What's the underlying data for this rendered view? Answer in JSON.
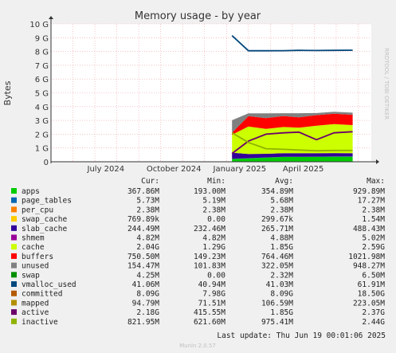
{
  "chart_data": {
    "type": "area",
    "title": "Memory usage - by year",
    "ylabel": "Bytes",
    "watermark": "RRDTOOL / TOBI OETIKER",
    "footer": "Munin 2.0.57",
    "last_update": "Last update: Thu Jun 19 00:01:06 2025",
    "y_ticks": [
      "0",
      "1 G",
      "2 G",
      "3 G",
      "4 G",
      "5 G",
      "6 G",
      "7 G",
      "8 G",
      "9 G",
      "10 G"
    ],
    "ylim": [
      0,
      10
    ],
    "y_unit": "G",
    "x_ticks": [
      {
        "label": "July 2024",
        "month": 6.5
      },
      {
        "label": "October 2024",
        "month": 9.6
      },
      {
        "label": "January 2025",
        "month": 12.6
      },
      {
        "label": "April 2025",
        "month": 15.5
      }
    ],
    "x_range_months": [
      4.0,
      18.6
    ],
    "data_start_month": 12.25,
    "grid": true,
    "legend_headers": [
      "Cur:",
      "Min:",
      "Avg:",
      "Max:"
    ],
    "legend": [
      {
        "name": "apps",
        "color": "#00cc00",
        "cur": "367.86M",
        "min": "193.00M",
        "avg": "354.89M",
        "max": "929.89M"
      },
      {
        "name": "page_tables",
        "color": "#0066b3",
        "cur": "5.73M",
        "min": "5.19M",
        "avg": "5.68M",
        "max": "17.27M"
      },
      {
        "name": "per_cpu",
        "color": "#ff8000",
        "cur": "2.38M",
        "min": "2.38M",
        "avg": "2.38M",
        "max": "2.38M"
      },
      {
        "name": "swap_cache",
        "color": "#ffcc00",
        "cur": "769.89k",
        "min": "0.00",
        "avg": "299.67k",
        "max": "1.54M"
      },
      {
        "name": "slab_cache",
        "color": "#330099",
        "cur": "244.49M",
        "min": "232.46M",
        "avg": "265.71M",
        "max": "488.43M"
      },
      {
        "name": "shmem",
        "color": "#990099",
        "cur": "4.82M",
        "min": "4.82M",
        "avg": "4.88M",
        "max": "5.02M"
      },
      {
        "name": "cache",
        "color": "#ccff00",
        "cur": "2.04G",
        "min": "1.29G",
        "avg": "1.85G",
        "max": "2.59G"
      },
      {
        "name": "buffers",
        "color": "#ff0000",
        "cur": "750.50M",
        "min": "149.23M",
        "avg": "764.46M",
        "max": "1021.98M"
      },
      {
        "name": "unused",
        "color": "#808080",
        "cur": "154.47M",
        "min": "101.83M",
        "avg": "322.05M",
        "max": "948.27M"
      },
      {
        "name": "swap",
        "color": "#008f00",
        "cur": "4.25M",
        "min": "0.00",
        "avg": "2.32M",
        "max": "6.50M"
      },
      {
        "name": "vmalloc_used",
        "color": "#00487d",
        "cur": "41.06M",
        "min": "40.94M",
        "avg": "41.03M",
        "max": "61.91M"
      },
      {
        "name": "committed",
        "color": "#b35a00",
        "cur": "8.09G",
        "min": "7.98G",
        "avg": "8.09G",
        "max": "18.50G"
      },
      {
        "name": "mapped",
        "color": "#b38f00",
        "cur": "94.79M",
        "min": "71.51M",
        "avg": "106.59M",
        "max": "223.05M"
      },
      {
        "name": "active",
        "color": "#6b006b",
        "cur": "2.18G",
        "min": "415.55M",
        "avg": "1.85G",
        "max": "2.37G"
      },
      {
        "name": "inactive",
        "color": "#8fb300",
        "cur": "821.95M",
        "min": "621.60M",
        "avg": "975.41M",
        "max": "2.44G"
      }
    ],
    "stack_layers": [
      {
        "name": "apps",
        "color": "#00cc00",
        "values": [
          0.2,
          0.25,
          0.3,
          0.35,
          0.35,
          0.36,
          0.37,
          0.37
        ]
      },
      {
        "name": "page_tables",
        "color": "#0066b3",
        "values": [
          0.01,
          0.01,
          0.01,
          0.01,
          0.01,
          0.01,
          0.01,
          0.01
        ]
      },
      {
        "name": "slab_cache",
        "color": "#330099",
        "values": [
          0.45,
          0.3,
          0.27,
          0.26,
          0.26,
          0.25,
          0.25,
          0.24
        ]
      },
      {
        "name": "cache",
        "color": "#ccff00",
        "values": [
          1.3,
          2.0,
          1.8,
          1.9,
          1.85,
          2.0,
          2.1,
          2.04
        ]
      },
      {
        "name": "buffers",
        "color": "#ff0000",
        "values": [
          0.15,
          0.75,
          0.78,
          0.8,
          0.75,
          0.76,
          0.75,
          0.75
        ]
      },
      {
        "name": "unused",
        "color": "#808080",
        "values": [
          0.9,
          0.2,
          0.35,
          0.2,
          0.3,
          0.15,
          0.15,
          0.15
        ]
      }
    ],
    "lines": [
      {
        "name": "committed",
        "color": "#00487d",
        "values": [
          9.15,
          8.05,
          8.05,
          8.06,
          8.08,
          8.07,
          8.08,
          8.09
        ]
      },
      {
        "name": "active",
        "color": "#6b006b",
        "values": [
          0.6,
          1.5,
          2.0,
          2.1,
          2.15,
          1.6,
          2.1,
          2.18
        ]
      },
      {
        "name": "inactive",
        "color": "#8fb300",
        "values": [
          2.1,
          1.4,
          0.95,
          0.9,
          0.85,
          0.8,
          0.82,
          0.82
        ]
      }
    ],
    "x_sample_months": [
      12.25,
      13.0,
      13.8,
      14.6,
      15.3,
      16.1,
      16.9,
      17.75
    ]
  }
}
